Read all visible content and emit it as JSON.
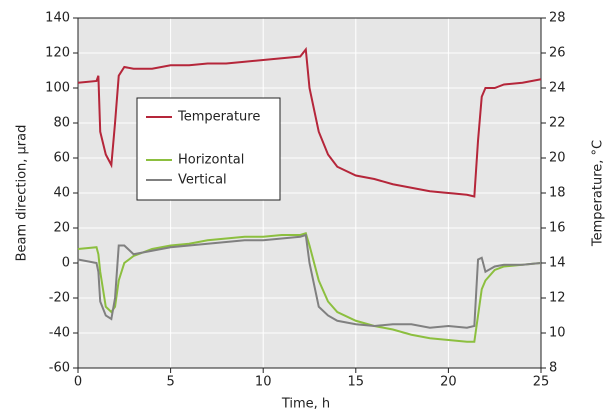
{
  "chart_data": {
    "type": "line",
    "x_label": "Time, h",
    "y_label": "Beam direction, μrad",
    "y2_label": "Temperature, °C",
    "x": [
      0,
      1,
      1.1,
      1.2,
      1.5,
      1.8,
      2,
      2.2,
      2.5,
      3,
      4,
      5,
      6,
      7,
      8,
      9,
      10,
      11,
      12,
      12.3,
      12.5,
      13,
      13.5,
      14,
      15,
      16,
      17,
      18,
      19,
      20,
      21,
      21.4,
      21.6,
      21.8,
      22,
      22.5,
      23,
      24,
      25
    ],
    "series": [
      {
        "name": "Temperature",
        "color": "#b5263a",
        "axis": "y2",
        "values": [
          24.3,
          24.4,
          24.7,
          21.5,
          20.2,
          19.6,
          22,
          24.7,
          25.2,
          25.1,
          25.1,
          25.3,
          25.3,
          25.4,
          25.4,
          25.5,
          25.6,
          25.7,
          25.8,
          26.2,
          24,
          21.5,
          20.2,
          19.5,
          19,
          18.8,
          18.5,
          18.3,
          18.1,
          18,
          17.9,
          17.8,
          21,
          23.5,
          24,
          24,
          24.2,
          24.3,
          24.5
        ]
      },
      {
        "name": "Horizontal",
        "color": "#8cbf3f",
        "values": [
          8,
          9,
          5,
          -5,
          -25,
          -28,
          -25,
          -10,
          0,
          4,
          8,
          10,
          11,
          13,
          14,
          15,
          15,
          16,
          16,
          17,
          10,
          -10,
          -22,
          -28,
          -33,
          -36,
          -38,
          -41,
          -43,
          -44,
          -45,
          -45,
          -30,
          -15,
          -10,
          -4,
          -2,
          -1,
          0
        ]
      },
      {
        "name": "Vertical",
        "color": "#808080",
        "values": [
          2,
          0,
          -5,
          -22,
          -30,
          -32,
          -20,
          10,
          10,
          5,
          7,
          9,
          10,
          11,
          12,
          13,
          13,
          14,
          15,
          16,
          0,
          -25,
          -30,
          -33,
          -35,
          -36,
          -35,
          -35,
          -37,
          -36,
          -37,
          -36,
          2,
          3,
          -5,
          -2,
          -1,
          -1,
          0
        ]
      }
    ],
    "xlim": [
      0,
      25
    ],
    "xticks": [
      0,
      5,
      10,
      15,
      20,
      25
    ],
    "ylim": [
      -60,
      140
    ],
    "yticks": [
      -60,
      -40,
      -20,
      0,
      20,
      40,
      60,
      80,
      100,
      120,
      140
    ],
    "y2lim": [
      8,
      28
    ],
    "y2ticks": [
      8,
      10,
      12,
      14,
      16,
      18,
      20,
      22,
      24,
      26,
      28
    ],
    "grid": true
  }
}
